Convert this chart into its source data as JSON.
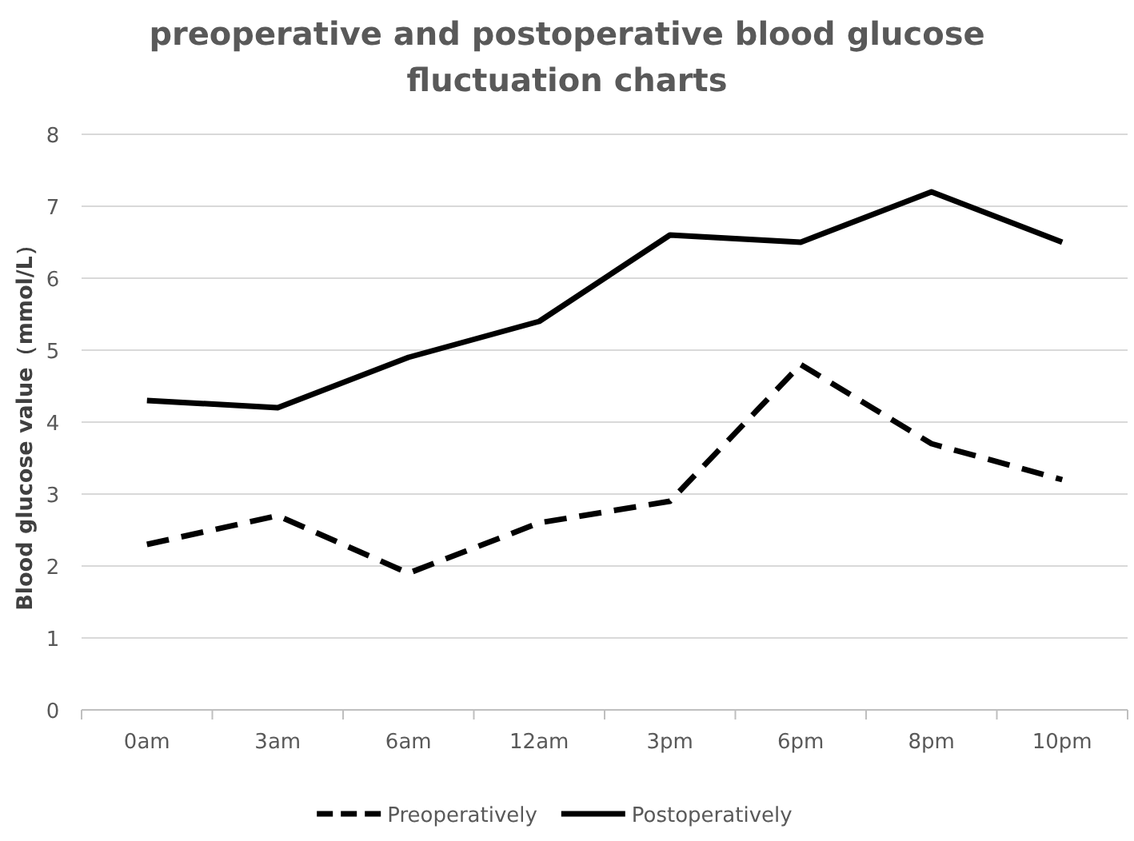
{
  "chart_data": {
    "type": "line",
    "title": "preoperative and postoperative blood glucose fluctuation charts",
    "ylabel": "Blood glucose value（mmol/L）",
    "categories": [
      "0am",
      "3am",
      "6am",
      "12am",
      "3pm",
      "6pm",
      "8pm",
      "10pm"
    ],
    "series": [
      {
        "name": "Preoperatively",
        "color": "#000000",
        "line_style": "dashed",
        "values": [
          2.3,
          2.7,
          1.9,
          2.6,
          2.9,
          4.8,
          3.7,
          3.2
        ]
      },
      {
        "name": "Postoperatively",
        "color": "#000000",
        "line_style": "solid",
        "values": [
          4.3,
          4.2,
          4.9,
          5.4,
          6.6,
          6.5,
          7.2,
          6.5
        ]
      }
    ],
    "ylim": [
      0,
      8
    ],
    "yticks": [
      0,
      1,
      2,
      3,
      4,
      5,
      6,
      7,
      8
    ],
    "grid": "y",
    "legend": "bottom",
    "marker": "none"
  }
}
